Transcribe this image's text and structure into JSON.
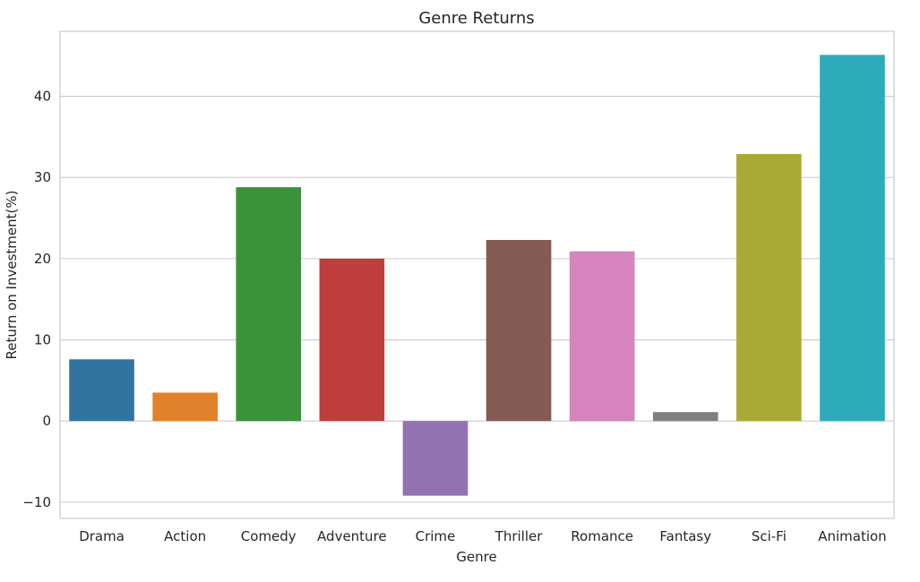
{
  "chart_data": {
    "type": "bar",
    "title": "Genre Returns",
    "xlabel": "Genre",
    "ylabel": "Return on Investment(%)",
    "categories": [
      "Drama",
      "Action",
      "Comedy",
      "Adventure",
      "Crime",
      "Thriller",
      "Romance",
      "Fantasy",
      "Sci-Fi",
      "Animation"
    ],
    "values": [
      7.6,
      3.5,
      28.8,
      20.0,
      -9.2,
      22.3,
      20.9,
      1.1,
      32.9,
      45.1
    ],
    "colors": [
      "#3274a1",
      "#e1812c",
      "#3a923a",
      "#c03d3e",
      "#9372b2",
      "#845b53",
      "#d684bd",
      "#7f7f7f",
      "#a9aa35",
      "#2eabb8"
    ],
    "ylim": [
      -12,
      48
    ],
    "yticks": [
      -10,
      0,
      10,
      20,
      30,
      40
    ],
    "ytick_labels": [
      "−10",
      "0",
      "10",
      "20",
      "30",
      "40"
    ],
    "grid": true
  }
}
